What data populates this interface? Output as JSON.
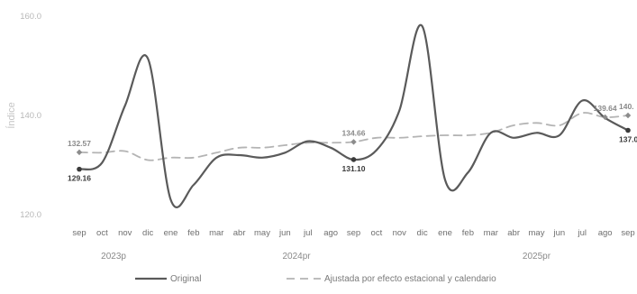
{
  "chart_data": {
    "type": "line",
    "ylabel": "Índice",
    "ylim": [
      120,
      160
    ],
    "yticks": [
      "120.0",
      "140.0",
      "160.0"
    ],
    "categories": [
      "sep",
      "oct",
      "nov",
      "dic",
      "ene",
      "feb",
      "mar",
      "abr",
      "may",
      "jun",
      "jul",
      "ago",
      "sep",
      "oct",
      "nov",
      "dic",
      "ene",
      "feb",
      "mar",
      "abr",
      "may",
      "jun",
      "jul",
      "ago",
      "sep"
    ],
    "year_groups": [
      {
        "label": "2023p",
        "start": 0,
        "end": 3
      },
      {
        "label": "2024pr",
        "start": 4,
        "end": 15
      },
      {
        "label": "2025pr",
        "start": 16,
        "end": 24
      }
    ],
    "series": [
      {
        "name": "Original",
        "style": "solid",
        "color": "#5a5a5a",
        "values": [
          129.16,
          130.5,
          142.0,
          151.5,
          123.0,
          126.0,
          131.5,
          132.0,
          131.5,
          132.5,
          134.8,
          133.5,
          131.1,
          133.0,
          141.0,
          158.0,
          127.0,
          128.5,
          136.5,
          135.5,
          136.5,
          136.0,
          143.0,
          139.5,
          137.0
        ]
      },
      {
        "name": "Ajustada por efecto estacional y calendario",
        "style": "dashed",
        "color": "#b4b4b4",
        "values": [
          132.57,
          132.5,
          132.8,
          131.0,
          131.5,
          131.5,
          132.5,
          133.5,
          133.5,
          134.0,
          134.5,
          134.5,
          134.66,
          135.5,
          135.5,
          135.8,
          136.0,
          136.0,
          136.5,
          138.0,
          138.5,
          138.0,
          140.5,
          139.64,
          140.0
        ]
      }
    ],
    "data_labels": [
      {
        "series": 0,
        "index": 0,
        "text": "129.16",
        "pos": "below"
      },
      {
        "series": 0,
        "index": 12,
        "text": "131.10",
        "pos": "below"
      },
      {
        "series": 0,
        "index": 24,
        "text": "137.0",
        "pos": "below"
      },
      {
        "series": 1,
        "index": 0,
        "text": "132.57",
        "pos": "above"
      },
      {
        "series": 1,
        "index": 12,
        "text": "134.66",
        "pos": "above"
      },
      {
        "series": 1,
        "index": 23,
        "text": "139.64",
        "pos": "above"
      },
      {
        "series": 1,
        "index": 24,
        "text": "140.",
        "pos": "above"
      }
    ],
    "legend": {
      "placement": "bottom"
    },
    "grid": false
  }
}
